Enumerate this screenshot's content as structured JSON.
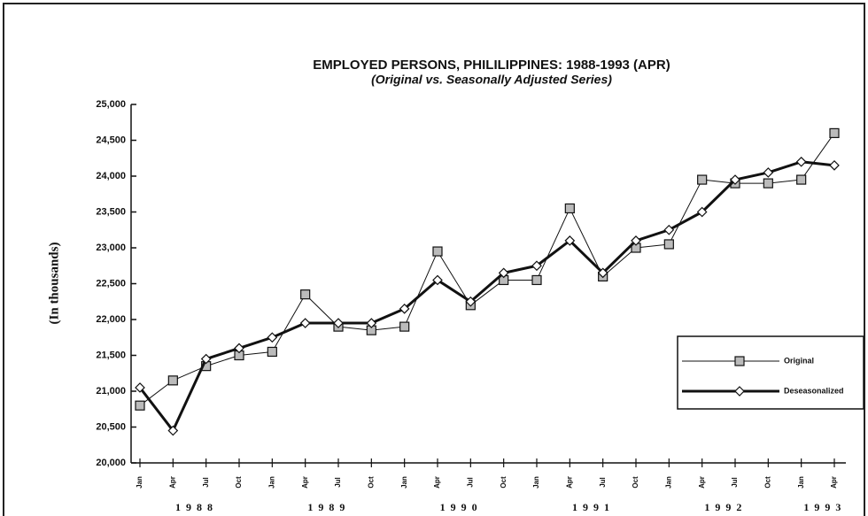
{
  "chart_data": {
    "type": "line",
    "title": "EMPLOYED PERSONS, PHILILIPPINES: 1988-1993 (APR)",
    "subtitle": "(Original vs. Seasonally Adjusted Series)",
    "y_label": "(In thousands)",
    "categories": [
      "Jan",
      "Apr",
      "Jul",
      "Oct",
      "Jan",
      "Apr",
      "Jul",
      "Oct",
      "Jan",
      "Apr",
      "Jul",
      "Oct",
      "Jan",
      "Apr",
      "Jul",
      "Oct",
      "Jan",
      "Apr",
      "Jul",
      "Oct",
      "Jan",
      "Apr"
    ],
    "years": [
      "1988",
      "1989",
      "1990",
      "1991",
      "1992",
      "1993"
    ],
    "series": [
      {
        "name": "Original",
        "color": "#111111",
        "marker": "square",
        "values": [
          20800,
          21150,
          21350,
          21500,
          21550,
          22350,
          21900,
          21850,
          21900,
          22950,
          22200,
          22550,
          22550,
          23550,
          22600,
          23000,
          23050,
          23950,
          23900,
          23900,
          23950,
          24600
        ]
      },
      {
        "name": "Deseasonalized",
        "color": "#111111",
        "marker": "diamond",
        "values": [
          21050,
          20450,
          21450,
          21600,
          21750,
          21950,
          21950,
          21950,
          22150,
          22550,
          22250,
          22650,
          22750,
          23100,
          22650,
          23100,
          23250,
          23500,
          23950,
          24050,
          24200,
          24150
        ]
      }
    ],
    "ylim": [
      20000,
      25000
    ],
    "yticks": [
      {
        "value": 20000,
        "label": "20,000"
      },
      {
        "value": 20500,
        "label": "20,500"
      },
      {
        "value": 21000,
        "label": "21,000"
      },
      {
        "value": 21500,
        "label": "21,500"
      },
      {
        "value": 22000,
        "label": "22,000"
      },
      {
        "value": 22500,
        "label": "22,500"
      },
      {
        "value": 23000,
        "label": "23,000"
      },
      {
        "value": 23500,
        "label": "23,500"
      },
      {
        "value": 24000,
        "label": "24,000"
      },
      {
        "value": 24500,
        "label": "24,500"
      },
      {
        "value": 25000,
        "label": "25,000"
      }
    ],
    "legend": "right"
  }
}
